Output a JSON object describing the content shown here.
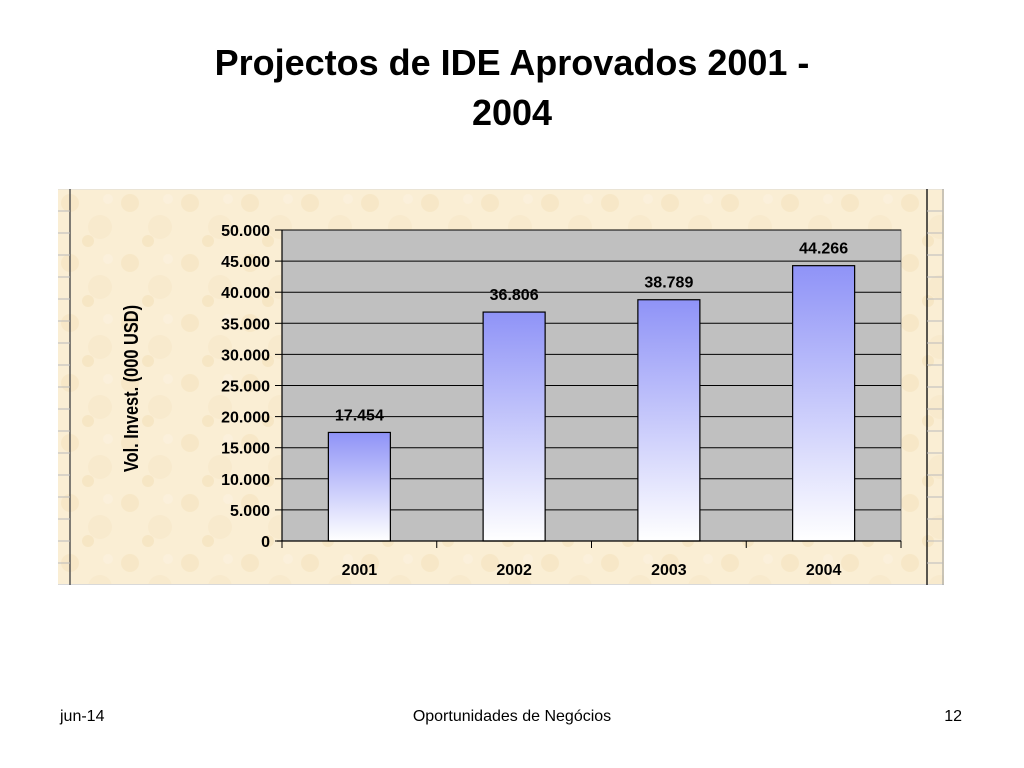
{
  "slide": {
    "title_line1": "Projectos de IDE Aprovados 2001 -",
    "title_line2": "2004"
  },
  "chart_data": {
    "type": "bar",
    "categories": [
      "2001",
      "2002",
      "2003",
      "2004"
    ],
    "values": [
      17454,
      36806,
      38789,
      44266
    ],
    "data_labels": [
      "17.454",
      "36.806",
      "38.789",
      "44.266"
    ],
    "title": "Projectos de IDE Aprovados 2001 - 2004",
    "xlabel": "",
    "ylabel": "Vol. Invest. (000 USD)",
    "ylim": [
      0,
      50000
    ],
    "yticks": [
      0,
      5000,
      10000,
      15000,
      20000,
      25000,
      30000,
      35000,
      40000,
      45000,
      50000
    ],
    "ytick_labels": [
      "0",
      "5.000",
      "10.000",
      "15.000",
      "20.000",
      "25.000",
      "30.000",
      "35.000",
      "40.000",
      "45.000",
      "50.000"
    ],
    "grid": true,
    "legend": "none",
    "colors": {
      "plot_background": "#c0c0c0",
      "bar_top": "#8f93f7",
      "bar_bottom": "#ffffff",
      "chart_background": "#faeed4"
    }
  },
  "footer": {
    "date": "jun-14",
    "center": "Oportunidades de Negócios",
    "page": "12"
  }
}
